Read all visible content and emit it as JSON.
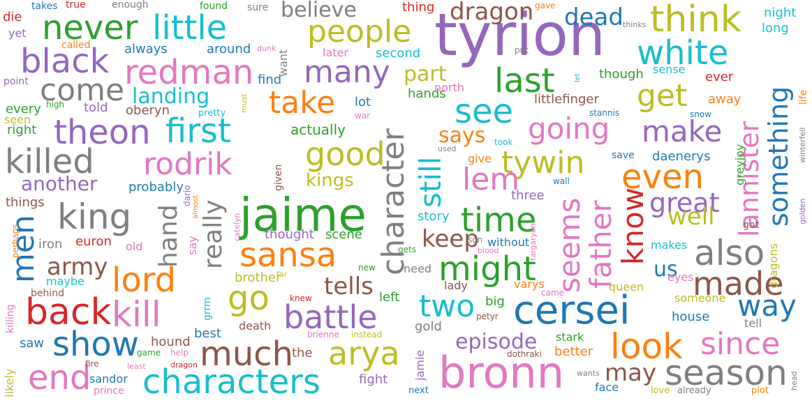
{
  "palette": {
    "blue": "#1f77b4",
    "orange": "#ff7f0e",
    "green": "#2ca02c",
    "red": "#d62728",
    "purple": "#9467bd",
    "brown": "#8c564b",
    "pink": "#e377c2",
    "gray": "#7f7f7f",
    "olive": "#bcbd22",
    "cyan": "#17becf"
  },
  "words": [
    {
      "text": "tyrion",
      "color": "purple"
    },
    {
      "text": "bronn",
      "color": "pink"
    },
    {
      "text": "jaime",
      "color": "green"
    },
    {
      "text": "cersei",
      "color": "blue"
    },
    {
      "text": "character",
      "color": "gray"
    },
    {
      "text": "think",
      "color": "olive"
    },
    {
      "text": "people",
      "color": "olive"
    },
    {
      "text": "never",
      "color": "green"
    },
    {
      "text": "little",
      "color": "cyan"
    },
    {
      "text": "black",
      "color": "purple"
    },
    {
      "text": "redman",
      "color": "pink"
    },
    {
      "text": "white",
      "color": "cyan"
    },
    {
      "text": "lannister",
      "color": "pink"
    },
    {
      "text": "something",
      "color": "blue"
    },
    {
      "text": "many",
      "color": "purple"
    },
    {
      "text": "last",
      "color": "green"
    },
    {
      "text": "come",
      "color": "gray"
    },
    {
      "text": "take",
      "color": "orange"
    },
    {
      "text": "see",
      "color": "cyan"
    },
    {
      "text": "get",
      "color": "olive"
    },
    {
      "text": "theon",
      "color": "purple"
    },
    {
      "text": "first",
      "color": "cyan"
    },
    {
      "text": "going",
      "color": "pink"
    },
    {
      "text": "make",
      "color": "purple"
    },
    {
      "text": "still",
      "color": "cyan"
    },
    {
      "text": "killed",
      "color": "gray"
    },
    {
      "text": "rodrik",
      "color": "pink"
    },
    {
      "text": "good",
      "color": "olive"
    },
    {
      "text": "tywin",
      "color": "olive"
    },
    {
      "text": "even",
      "color": "orange"
    },
    {
      "text": "lem",
      "color": "pink"
    },
    {
      "text": "king",
      "color": "gray"
    },
    {
      "text": "know",
      "color": "red"
    },
    {
      "text": "father",
      "color": "pink"
    },
    {
      "text": "seems",
      "color": "pink"
    },
    {
      "text": "great",
      "color": "purple"
    },
    {
      "text": "men",
      "color": "blue"
    },
    {
      "text": "hand",
      "color": "gray"
    },
    {
      "text": "really",
      "color": "gray"
    },
    {
      "text": "time",
      "color": "green"
    },
    {
      "text": "well",
      "color": "olive"
    },
    {
      "text": "sansa",
      "color": "orange"
    },
    {
      "text": "keep",
      "color": "brown"
    },
    {
      "text": "also",
      "color": "gray"
    },
    {
      "text": "might",
      "color": "green"
    },
    {
      "text": "lord",
      "color": "orange"
    },
    {
      "text": "made",
      "color": "brown"
    },
    {
      "text": "us",
      "color": "blue"
    },
    {
      "text": "army",
      "color": "brown"
    },
    {
      "text": "go",
      "color": "olive"
    },
    {
      "text": "tells",
      "color": "brown"
    },
    {
      "text": "way",
      "color": "blue"
    },
    {
      "text": "back",
      "color": "red"
    },
    {
      "text": "kill",
      "color": "pink"
    },
    {
      "text": "battle",
      "color": "purple"
    },
    {
      "text": "two",
      "color": "cyan"
    },
    {
      "text": "show",
      "color": "blue"
    },
    {
      "text": "arya",
      "color": "olive"
    },
    {
      "text": "episode",
      "color": "purple"
    },
    {
      "text": "look",
      "color": "orange"
    },
    {
      "text": "since",
      "color": "pink"
    },
    {
      "text": "much",
      "color": "brown"
    },
    {
      "text": "end",
      "color": "pink"
    },
    {
      "text": "characters",
      "color": "cyan"
    },
    {
      "text": "season",
      "color": "gray"
    },
    {
      "text": "may",
      "color": "brown"
    },
    {
      "text": "dragon",
      "color": "brown"
    },
    {
      "text": "dead",
      "color": "blue"
    },
    {
      "text": "believe",
      "color": "gray"
    },
    {
      "text": "part",
      "color": "olive"
    },
    {
      "text": "landing",
      "color": "cyan"
    },
    {
      "text": "says",
      "color": "orange"
    },
    {
      "text": "kings",
      "color": "olive"
    },
    {
      "text": "another",
      "color": "purple"
    },
    {
      "text": "night",
      "color": "cyan"
    },
    {
      "text": "long",
      "color": "cyan"
    },
    {
      "text": "die",
      "color": "red"
    },
    {
      "text": "takes",
      "color": "blue"
    },
    {
      "text": "true",
      "color": "red"
    },
    {
      "text": "enough",
      "color": "gray"
    },
    {
      "text": "found",
      "color": "green"
    },
    {
      "text": "sure",
      "color": "gray"
    },
    {
      "text": "thing",
      "color": "red"
    },
    {
      "text": "gave",
      "color": "orange"
    },
    {
      "text": "thinks",
      "color": "gray"
    },
    {
      "text": "yet",
      "color": "purple"
    },
    {
      "text": "called",
      "color": "orange"
    },
    {
      "text": "always",
      "color": "blue"
    },
    {
      "text": "around",
      "color": "blue"
    },
    {
      "text": "dunk",
      "color": "pink"
    },
    {
      "text": "want",
      "color": "gray"
    },
    {
      "text": "later",
      "color": "pink"
    },
    {
      "text": "second",
      "color": "cyan"
    },
    {
      "text": "put",
      "color": "gray"
    },
    {
      "text": "let",
      "color": "cyan"
    },
    {
      "text": "sense",
      "color": "cyan"
    },
    {
      "text": "though",
      "color": "green"
    },
    {
      "text": "ever",
      "color": "red"
    },
    {
      "text": "point",
      "color": "purple"
    },
    {
      "text": "find",
      "color": "blue"
    },
    {
      "text": "hands",
      "color": "green"
    },
    {
      "text": "north",
      "color": "pink"
    },
    {
      "text": "littlefinger",
      "color": "brown"
    },
    {
      "text": "away",
      "color": "orange"
    },
    {
      "text": "life",
      "color": "orange"
    },
    {
      "text": "every",
      "color": "green"
    },
    {
      "text": "high",
      "color": "green"
    },
    {
      "text": "told",
      "color": "purple"
    },
    {
      "text": "oberyn",
      "color": "brown"
    },
    {
      "text": "pretty",
      "color": "cyan"
    },
    {
      "text": "must",
      "color": "olive"
    },
    {
      "text": "lot",
      "color": "blue"
    },
    {
      "text": "war",
      "color": "pink"
    },
    {
      "text": "stannis",
      "color": "blue"
    },
    {
      "text": "snow",
      "color": "blue"
    },
    {
      "text": "seen",
      "color": "olive"
    },
    {
      "text": "right",
      "color": "green"
    },
    {
      "text": "actually",
      "color": "green"
    },
    {
      "text": "used",
      "color": "gray"
    },
    {
      "text": "took",
      "color": "cyan"
    },
    {
      "text": "save",
      "color": "blue"
    },
    {
      "text": "daenerys",
      "color": "blue"
    },
    {
      "text": "greyjoy",
      "color": "green"
    },
    {
      "text": "winterfell",
      "color": "gray"
    },
    {
      "text": "golden",
      "color": "purple"
    },
    {
      "text": "given",
      "color": "brown"
    },
    {
      "text": "give",
      "color": "orange"
    },
    {
      "text": "wall",
      "color": "blue"
    },
    {
      "text": "probably",
      "color": "blue"
    },
    {
      "text": "three",
      "color": "purple"
    },
    {
      "text": "things",
      "color": "brown"
    },
    {
      "text": "dario",
      "color": "purple"
    },
    {
      "text": "almost",
      "color": "orange"
    },
    {
      "text": "story",
      "color": "cyan"
    },
    {
      "text": "perhaps",
      "color": "orange"
    },
    {
      "text": "catelyn",
      "color": "pink"
    },
    {
      "text": "thought",
      "color": "purple"
    },
    {
      "text": "scene",
      "color": "green"
    },
    {
      "text": "got",
      "color": "brown"
    },
    {
      "text": "iron",
      "color": "gray"
    },
    {
      "text": "euron",
      "color": "red"
    },
    {
      "text": "say",
      "color": "pink"
    },
    {
      "text": "gets",
      "color": "green"
    },
    {
      "text": "son",
      "color": "gray"
    },
    {
      "text": "without",
      "color": "blue"
    },
    {
      "text": "blood",
      "color": "pink"
    },
    {
      "text": "targaryen",
      "color": "pink"
    },
    {
      "text": "makes",
      "color": "cyan"
    },
    {
      "text": "dragons",
      "color": "olive"
    },
    {
      "text": "old",
      "color": "pink"
    },
    {
      "text": "new",
      "color": "green"
    },
    {
      "text": "need",
      "color": "gray"
    },
    {
      "text": "far",
      "color": "olive"
    },
    {
      "text": "brother",
      "color": "olive"
    },
    {
      "text": "eyes",
      "color": "pink"
    },
    {
      "text": "lady",
      "color": "brown"
    },
    {
      "text": "varys",
      "color": "orange"
    },
    {
      "text": "queen",
      "color": "olive"
    },
    {
      "text": "maybe",
      "color": "cyan"
    },
    {
      "text": "behind",
      "color": "brown"
    },
    {
      "text": "killing",
      "color": "pink"
    },
    {
      "text": "knew",
      "color": "red"
    },
    {
      "text": "left",
      "color": "green"
    },
    {
      "text": "came",
      "color": "pink"
    },
    {
      "text": "big",
      "color": "green"
    },
    {
      "text": "someone",
      "color": "olive"
    },
    {
      "text": "grrm",
      "color": "cyan"
    },
    {
      "text": "death",
      "color": "brown"
    },
    {
      "text": "gold",
      "color": "gray"
    },
    {
      "text": "petyr",
      "color": "brown"
    },
    {
      "text": "house",
      "color": "blue"
    },
    {
      "text": "tell",
      "color": "gray"
    },
    {
      "text": "saw",
      "color": "blue"
    },
    {
      "text": "best",
      "color": "blue"
    },
    {
      "text": "brienne",
      "color": "pink"
    },
    {
      "text": "instead",
      "color": "olive"
    },
    {
      "text": "stark",
      "color": "green"
    },
    {
      "text": "better",
      "color": "orange"
    },
    {
      "text": "hound",
      "color": "brown"
    },
    {
      "text": "game",
      "color": "green"
    },
    {
      "text": "help",
      "color": "pink"
    },
    {
      "text": "dothraki",
      "color": "brown"
    },
    {
      "text": "likely",
      "color": "olive"
    },
    {
      "text": "fire",
      "color": "brown"
    },
    {
      "text": "least",
      "color": "pink"
    },
    {
      "text": "dragon",
      "color": "red"
    },
    {
      "text": "the",
      "color": "brown"
    },
    {
      "text": "jamie",
      "color": "purple"
    },
    {
      "text": "wants",
      "color": "gray"
    },
    {
      "text": "head",
      "color": "gray"
    },
    {
      "text": "sandor",
      "color": "blue"
    },
    {
      "text": "prince",
      "color": "pink"
    },
    {
      "text": "fight",
      "color": "purple"
    },
    {
      "text": "next",
      "color": "blue"
    },
    {
      "text": "face",
      "color": "blue"
    },
    {
      "text": "love",
      "color": "olive"
    },
    {
      "text": "already",
      "color": "gray"
    },
    {
      "text": "plot",
      "color": "orange"
    }
  ]
}
